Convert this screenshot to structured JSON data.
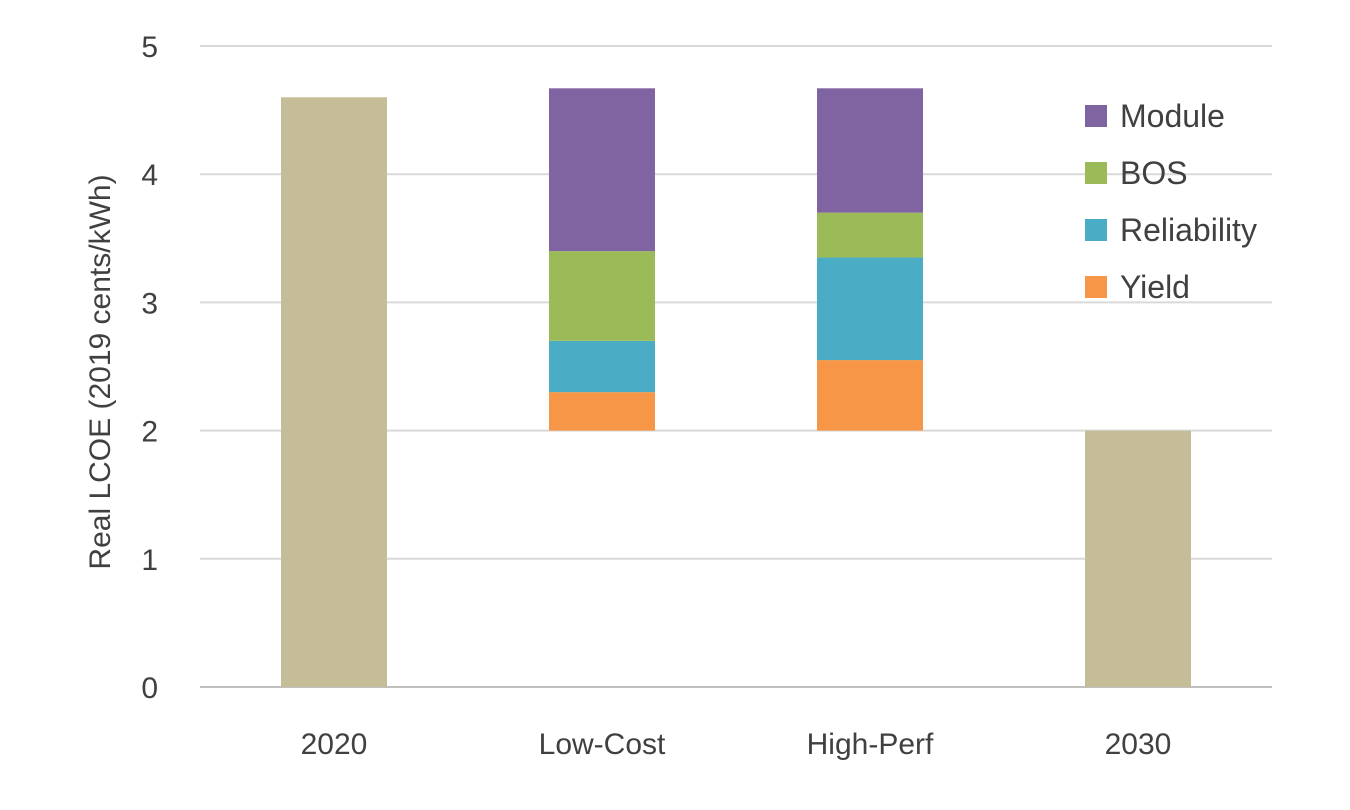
{
  "chart_data": {
    "type": "bar",
    "stacked": true,
    "title": "",
    "xlabel": "",
    "ylabel": "Real LCOE (2019 cents/kWh)",
    "ylim": [
      0,
      5
    ],
    "yticks": [
      0,
      1,
      2,
      3,
      4,
      5
    ],
    "grid": true,
    "legend_position": "top-right",
    "categories": [
      "2020",
      "Low-Cost",
      "High-Perf",
      "2030"
    ],
    "totals": [
      {
        "category": "2020",
        "value": 4.6,
        "color": "#c4bd97"
      },
      {
        "category": "2030",
        "value": 2.0,
        "color": "#c4bd97"
      }
    ],
    "stack_base": 2.0,
    "series": [
      {
        "name": "Yield",
        "color": "#f79646",
        "values": [
          null,
          0.3,
          0.55,
          null
        ]
      },
      {
        "name": "Reliability",
        "color": "#4bacc6",
        "values": [
          null,
          0.4,
          0.8,
          null
        ]
      },
      {
        "name": "BOS",
        "color": "#9bbb59",
        "values": [
          null,
          0.7,
          0.35,
          null
        ]
      },
      {
        "name": "Module",
        "color": "#8064a2",
        "values": [
          null,
          1.27,
          0.97,
          null
        ]
      }
    ],
    "legend_order": [
      "Module",
      "BOS",
      "Reliability",
      "Yield"
    ]
  }
}
